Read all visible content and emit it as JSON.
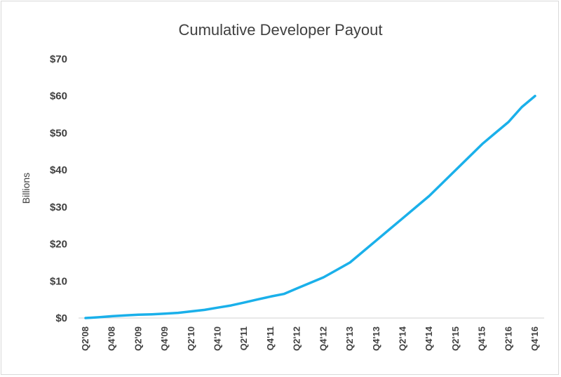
{
  "chart_data": {
    "type": "line",
    "title": "Cumulative Developer Payout",
    "xlabel": "",
    "ylabel": "Billions",
    "ylim": [
      0,
      70
    ],
    "y_ticks": [
      "$0",
      "$10",
      "$20",
      "$30",
      "$40",
      "$50",
      "$60",
      "$70"
    ],
    "y_tick_values": [
      0,
      10,
      20,
      30,
      40,
      50,
      60,
      70
    ],
    "grid": false,
    "legend": "none",
    "line_color": "#1ab0ea",
    "categories": [
      "Q2'08",
      "Q3'08",
      "Q4'08",
      "Q1'09",
      "Q2'09",
      "Q3'09",
      "Q4'09",
      "Q1'10",
      "Q2'10",
      "Q3'10",
      "Q4'10",
      "Q1'11",
      "Q2'11",
      "Q3'11",
      "Q4'11",
      "Q1'12",
      "Q2'12",
      "Q3'12",
      "Q4'12",
      "Q1'13",
      "Q2'13",
      "Q3'13",
      "Q4'13",
      "Q1'14",
      "Q2'14",
      "Q3'14",
      "Q4'14",
      "Q1'15",
      "Q2'15",
      "Q3'15",
      "Q4'15",
      "Q1'16",
      "Q2'16",
      "Q3'16",
      "Q4'16"
    ],
    "x_tick_labels": [
      "Q2'08",
      "Q4'08",
      "Q2'09",
      "Q4'09",
      "Q2'10",
      "Q4'10",
      "Q2'11",
      "Q4'11",
      "Q2'12",
      "Q4'12",
      "Q2'13",
      "Q4'13",
      "Q2'14",
      "Q4'14",
      "Q2'15",
      "Q4'15",
      "Q2'16",
      "Q4'16"
    ],
    "series": [
      {
        "values": [
          0,
          0.2,
          0.5,
          0.7,
          0.9,
          1.0,
          1.2,
          1.4,
          1.8,
          2.2,
          2.8,
          3.4,
          4.2,
          5.0,
          5.8,
          6.5,
          8.0,
          9.5,
          11.0,
          13.0,
          15.0,
          18.0,
          21.0,
          24.0,
          27.0,
          30.0,
          33.0,
          36.5,
          40.0,
          43.5,
          47.0,
          50.0,
          53.0,
          57.0,
          60.0
        ]
      }
    ]
  }
}
